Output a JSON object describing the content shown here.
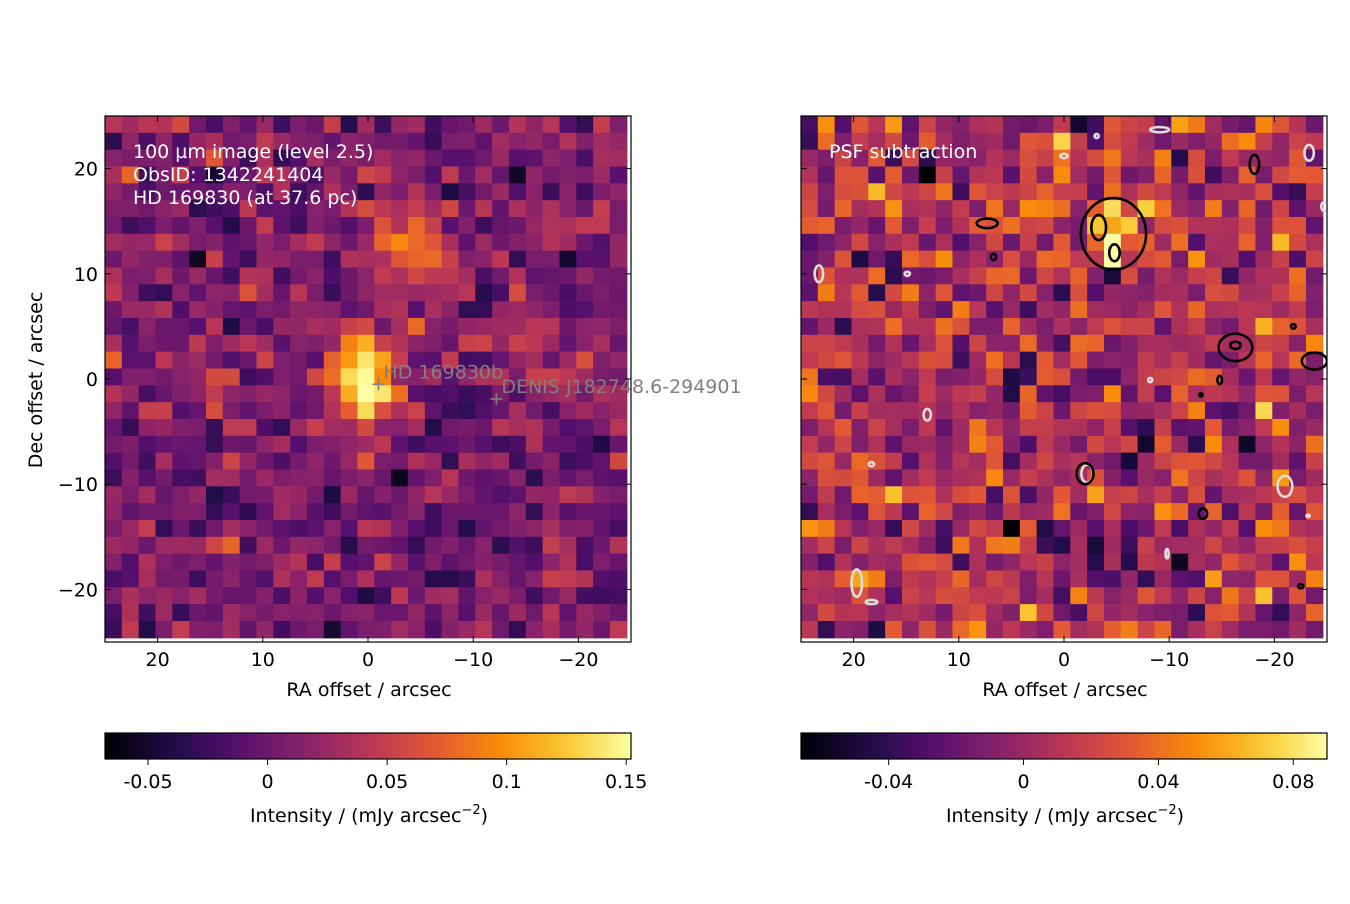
{
  "chart_data": [
    {
      "type": "heatmap",
      "panel": "left",
      "annotation_lines": [
        "100 µm image (level 2.5)",
        "ObsID: 1342241404",
        "HD 169830 (at 37.6 pc)"
      ],
      "xlabel": "RA offset / arcsec",
      "ylabel": "Dec offset / arcsec",
      "xlim": [
        25,
        -25
      ],
      "ylim": [
        -25,
        25
      ],
      "xticks": [
        20,
        10,
        0,
        -10,
        -20
      ],
      "xtick_labels": [
        "20",
        "10",
        "0",
        "−10",
        "−20"
      ],
      "yticks": [
        20,
        10,
        0,
        -10,
        -20
      ],
      "ytick_labels": [
        "20",
        "10",
        "0",
        "−10",
        "−20"
      ],
      "grid": {
        "nx": 31,
        "ny": 31,
        "pixel_arcsec": 1.6
      },
      "markers": [
        {
          "label": "HD 169830b",
          "ra": -1.0,
          "dec": -0.5
        },
        {
          "label": "DENIS J182748.6-294901",
          "ra": -12.2,
          "dec": -1.9
        }
      ],
      "colorbar": {
        "colormap": "inferno",
        "range": [
          -0.068,
          0.152
        ],
        "ticks": [
          -0.05,
          0,
          0.05,
          0.1,
          0.15
        ],
        "tick_labels": [
          "-0.05",
          "0",
          "0.05",
          "0.1",
          "0.15"
        ],
        "label_prefix": "Intensity / (mJy arcsec",
        "label_exp": "−2",
        "label_suffix": ")"
      },
      "features": [
        {
          "name": "central source",
          "ra": 0.5,
          "dec": 0.0,
          "sx": 2.2,
          "sy": 3.0,
          "peak": 0.145
        },
        {
          "name": "north-east blob",
          "ra": -4.0,
          "dec": 13.5,
          "sx": 3.0,
          "sy": 2.2,
          "peak": 0.07
        },
        {
          "name": "eastern blob",
          "ra": -15.0,
          "dec": 3.0,
          "sx": 2.2,
          "sy": 1.8,
          "peak": 0.05
        }
      ],
      "background": {
        "mean": 0.008,
        "noise": 0.022
      }
    },
    {
      "type": "heatmap",
      "panel": "right",
      "annotation_lines": [
        "PSF subtraction"
      ],
      "xlabel": "RA offset / arcsec",
      "xlim": [
        25,
        -25
      ],
      "ylim": [
        -25,
        25
      ],
      "xticks": [
        20,
        10,
        0,
        -10,
        -20
      ],
      "xtick_labels": [
        "20",
        "10",
        "0",
        "−10",
        "−20"
      ],
      "grid": {
        "nx": 31,
        "ny": 31,
        "pixel_arcsec": 1.6
      },
      "colorbar": {
        "colormap": "inferno",
        "range": [
          -0.066,
          0.09
        ],
        "ticks": [
          -0.04,
          0,
          0.04,
          0.08
        ],
        "tick_labels": [
          "-0.04",
          "0",
          "0.04",
          "0.08"
        ],
        "label_prefix": "Intensity / (mJy arcsec",
        "label_exp": "−2",
        "label_suffix": ")"
      },
      "features": [
        {
          "name": "residual blob",
          "ra": -4.5,
          "dec": 13.5,
          "sx": 2.2,
          "sy": 2.2,
          "peak": 0.075
        }
      ],
      "background": {
        "mean": 0.005,
        "noise": 0.024
      },
      "contours": {
        "positive_color": "#000000",
        "negative_color": "#dddddd",
        "positive": [
          {
            "ra": -4.7,
            "dec": 13.8,
            "rx": 3.1,
            "ry": 3.4
          },
          {
            "ra": -3.3,
            "dec": 14.4,
            "rx": 0.7,
            "ry": 1.2
          },
          {
            "ra": -4.8,
            "dec": 12.0,
            "rx": 0.5,
            "ry": 0.8
          },
          {
            "ra": 7.3,
            "dec": 14.8,
            "rx": 1.0,
            "ry": 0.45
          },
          {
            "ra": -18.1,
            "dec": 20.4,
            "rx": 0.45,
            "ry": 0.9
          },
          {
            "ra": -16.3,
            "dec": 3.0,
            "rx": 1.6,
            "ry": 1.3
          },
          {
            "ra": -16.3,
            "dec": 3.2,
            "rx": 0.5,
            "ry": 0.35
          },
          {
            "ra": -23.8,
            "dec": 1.7,
            "rx": 1.2,
            "ry": 0.8
          },
          {
            "ra": -2.0,
            "dec": -9.0,
            "rx": 0.8,
            "ry": 1.0
          },
          {
            "ra": -13.2,
            "dec": -12.8,
            "rx": 0.4,
            "ry": 0.5
          },
          {
            "ra": 6.7,
            "dec": 11.6,
            "rx": 0.25,
            "ry": 0.3
          },
          {
            "ra": -14.8,
            "dec": -0.1,
            "rx": 0.22,
            "ry": 0.4
          },
          {
            "ra": -21.8,
            "dec": 5.0,
            "rx": 0.22,
            "ry": 0.22
          },
          {
            "ra": -22.5,
            "dec": -19.7,
            "rx": 0.25,
            "ry": 0.2
          },
          {
            "ra": -13.0,
            "dec": -1.5,
            "rx": 0.15,
            "ry": 0.15
          }
        ],
        "negative": [
          {
            "ra": 23.3,
            "dec": 10.0,
            "rx": 0.4,
            "ry": 0.8
          },
          {
            "ra": 13.0,
            "dec": -3.4,
            "rx": 0.35,
            "ry": 0.55
          },
          {
            "ra": 19.7,
            "dec": -19.4,
            "rx": 0.5,
            "ry": 1.3
          },
          {
            "ra": 18.3,
            "dec": -21.2,
            "rx": 0.55,
            "ry": 0.2
          },
          {
            "ra": -2.2,
            "dec": -9.0,
            "rx": 0.55,
            "ry": 0.85
          },
          {
            "ra": -21.0,
            "dec": -10.2,
            "rx": 0.7,
            "ry": 1.0
          },
          {
            "ra": -23.3,
            "dec": 21.5,
            "rx": 0.45,
            "ry": 0.75
          },
          {
            "ra": -24.8,
            "dec": 16.4,
            "rx": 0.35,
            "ry": 0.45
          },
          {
            "ra": -9.1,
            "dec": 23.7,
            "rx": 0.9,
            "ry": 0.25
          },
          {
            "ra": -3.1,
            "dec": 23.1,
            "rx": 0.2,
            "ry": 0.2
          },
          {
            "ra": 0.0,
            "dec": 21.2,
            "rx": 0.35,
            "ry": 0.2
          },
          {
            "ra": 14.9,
            "dec": 10.0,
            "rx": 0.25,
            "ry": 0.2
          },
          {
            "ra": 18.3,
            "dec": -8.1,
            "rx": 0.25,
            "ry": 0.2
          },
          {
            "ra": -8.2,
            "dec": -0.1,
            "rx": 0.2,
            "ry": 0.2
          },
          {
            "ra": -9.8,
            "dec": -16.6,
            "rx": 0.15,
            "ry": 0.45
          },
          {
            "ra": -23.2,
            "dec": -13.0,
            "rx": 0.15,
            "ry": 0.1
          }
        ]
      }
    }
  ]
}
